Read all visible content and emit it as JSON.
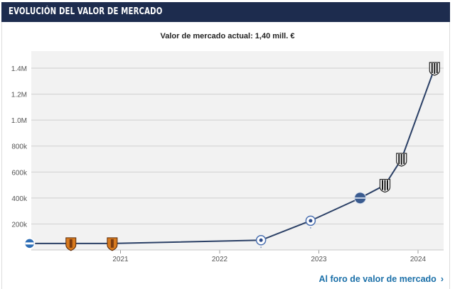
{
  "header": {
    "title": "Evolución del valor de mercado"
  },
  "subtitle": "Valor de mercado actual: 1,40 mill. €",
  "footer": {
    "link_label": "Al foro de valor de mercado",
    "chevron": "›"
  },
  "colors": {
    "header_bg": "#1d2c4e",
    "line": "#2b4066",
    "grid": "#cfcfcf",
    "plot_bg": "#f2f2f2",
    "link": "#1a6fa8"
  },
  "chart_data": {
    "type": "line",
    "x_ticks": [
      "2021",
      "2022",
      "2023",
      "2024"
    ],
    "y_ticks": [
      "200k",
      "400k",
      "600k",
      "800k",
      "1.0M",
      "1.2M",
      "1.4M"
    ],
    "ylim": [
      0,
      1400000
    ],
    "series": [
      {
        "points": [
          {
            "x": "2020-02",
            "y": 50000,
            "club_icon": "striped-crest"
          },
          {
            "x": "2020-07",
            "y": 50000,
            "club_icon": "orange-shield-crest"
          },
          {
            "x": "2020-12",
            "y": 50000,
            "club_icon": "orange-shield-crest"
          },
          {
            "x": "2022-06",
            "y": 75000,
            "club_icon": "star-crest"
          },
          {
            "x": "2022-12",
            "y": 225000,
            "club_icon": "star-crest"
          },
          {
            "x": "2023-06",
            "y": 400000,
            "club_icon": "round-blue-crest"
          },
          {
            "x": "2023-09",
            "y": 500000,
            "club_icon": "striped-shield-crest"
          },
          {
            "x": "2023-11",
            "y": 700000,
            "club_icon": "striped-shield-crest"
          },
          {
            "x": "2024-03",
            "y": 1400000,
            "club_icon": "striped-shield-crest"
          }
        ]
      }
    ]
  }
}
